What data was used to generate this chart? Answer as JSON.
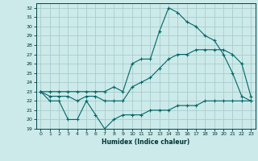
{
  "title": "",
  "xlabel": "Humidex (Indice chaleur)",
  "ylabel": "",
  "bg_color": "#cceaea",
  "grid_color": "#aacccc",
  "line_color": "#006666",
  "xlim": [
    -0.5,
    23.5
  ],
  "ylim": [
    19,
    32.5
  ],
  "yticks": [
    19,
    20,
    21,
    22,
    23,
    24,
    25,
    26,
    27,
    28,
    29,
    30,
    31,
    32
  ],
  "xticks": [
    0,
    1,
    2,
    3,
    4,
    5,
    6,
    7,
    8,
    9,
    10,
    11,
    12,
    13,
    14,
    15,
    16,
    17,
    18,
    19,
    20,
    21,
    22,
    23
  ],
  "x": [
    0,
    1,
    2,
    3,
    4,
    5,
    6,
    7,
    8,
    9,
    10,
    11,
    12,
    13,
    14,
    15,
    16,
    17,
    18,
    19,
    20,
    21,
    22,
    23
  ],
  "y_max": [
    23.0,
    23.0,
    23.0,
    23.0,
    23.0,
    23.0,
    23.0,
    23.0,
    23.5,
    23.0,
    26.0,
    26.5,
    26.5,
    29.5,
    32.0,
    31.5,
    30.5,
    30.0,
    29.0,
    28.5,
    27.0,
    25.0,
    22.5,
    22.0
  ],
  "y_mean": [
    23.0,
    22.5,
    22.5,
    22.5,
    22.0,
    22.5,
    22.5,
    22.0,
    22.0,
    22.0,
    23.5,
    24.0,
    24.5,
    25.5,
    26.5,
    27.0,
    27.0,
    27.5,
    27.5,
    27.5,
    27.5,
    27.0,
    26.0,
    22.5
  ],
  "y_min": [
    23.0,
    22.0,
    22.0,
    20.0,
    20.0,
    22.0,
    20.5,
    19.0,
    20.0,
    20.5,
    20.5,
    20.5,
    21.0,
    21.0,
    21.0,
    21.5,
    21.5,
    21.5,
    22.0,
    22.0,
    22.0,
    22.0,
    22.0,
    22.0
  ]
}
